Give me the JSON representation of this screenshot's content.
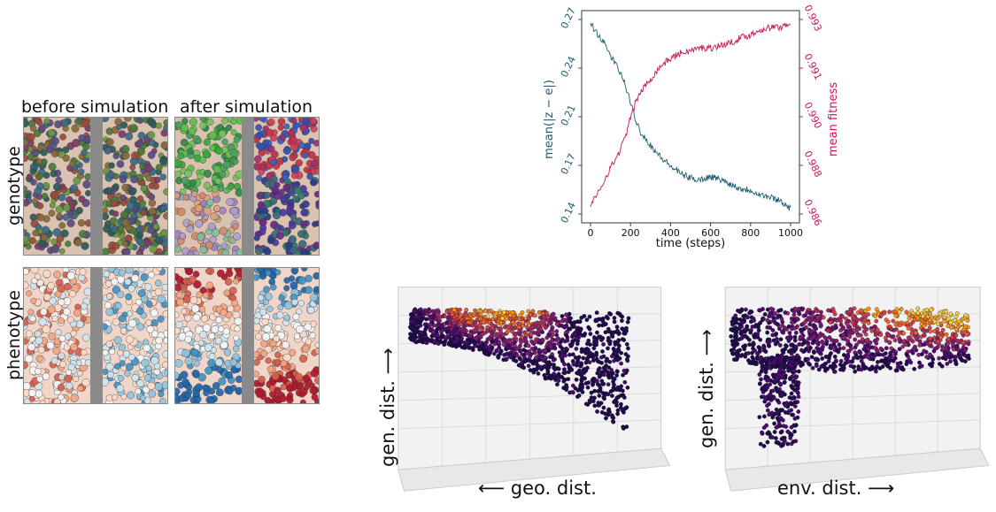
{
  "grid": {
    "col_titles": [
      "before simulation",
      "after simulation"
    ],
    "row_labels": [
      "genotype",
      "phenotype"
    ],
    "gap_color": "#8a8a8a",
    "genotype_colors": [
      "#4a7a3a",
      "#6a9a40",
      "#8a6a3a",
      "#3a6a8a",
      "#7a3a6a",
      "#2a5a5a",
      "#9a4a3a",
      "#5a4a8a"
    ],
    "phenotype_colors": [
      "#b2182b",
      "#d6604d",
      "#f4a582",
      "#fddbc7",
      "#f7f7f7",
      "#d1e5f0",
      "#92c5de",
      "#4393c3",
      "#2166ac"
    ]
  },
  "chart_data": [
    {
      "type": "line",
      "xlabel": "time (steps)",
      "xlim": [
        0,
        1000
      ],
      "xticks": [
        0,
        200,
        400,
        600,
        800,
        1000
      ],
      "series": [
        {
          "name": "mean(|z − e|)",
          "axis": "left",
          "color": "#1b5e6e",
          "yticks": [
            "0.14",
            "0.17",
            "0.21",
            "0.24",
            "0.27"
          ],
          "ylim": [
            0.14,
            0.27
          ],
          "x": [
            0,
            25,
            50,
            75,
            100,
            125,
            150,
            175,
            200,
            225,
            250,
            300,
            350,
            400,
            450,
            500,
            550,
            600,
            650,
            700,
            750,
            800,
            850,
            900,
            950,
            1000
          ],
          "y": [
            0.268,
            0.262,
            0.258,
            0.252,
            0.246,
            0.24,
            0.234,
            0.226,
            0.214,
            0.203,
            0.195,
            0.186,
            0.178,
            0.172,
            0.167,
            0.164,
            0.163,
            0.165,
            0.163,
            0.16,
            0.157,
            0.156,
            0.153,
            0.151,
            0.149,
            0.143
          ]
        },
        {
          "name": "mean fitness",
          "axis": "right",
          "color": "#c2185b",
          "yticks": [
            "0.986",
            "0.988",
            "0.990",
            "0.991",
            "0.993"
          ],
          "ylim": [
            0.986,
            0.9935
          ],
          "x": [
            0,
            25,
            50,
            75,
            100,
            125,
            150,
            175,
            200,
            225,
            250,
            300,
            350,
            400,
            450,
            500,
            550,
            600,
            650,
            700,
            750,
            800,
            850,
            900,
            950,
            1000
          ],
          "y": [
            0.9864,
            0.9866,
            0.987,
            0.9874,
            0.9878,
            0.9881,
            0.9885,
            0.989,
            0.9897,
            0.9903,
            0.9907,
            0.9912,
            0.9917,
            0.992,
            0.9922,
            0.9923,
            0.9924,
            0.9924,
            0.9925,
            0.9926,
            0.9928,
            0.9929,
            0.9931,
            0.9932,
            0.9932,
            0.9934
          ]
        }
      ]
    },
    {
      "type": "scatter",
      "zlabel": "gen. dist. ⟶",
      "xlabel": "⟵ geo. dist.",
      "colormap": [
        "#1f0c48",
        "#4b0c6b",
        "#781c6d",
        "#a52c60",
        "#cf4446",
        "#ed6925",
        "#fb9b06",
        "#f7d13d"
      ],
      "shape": "funnel-left"
    },
    {
      "type": "scatter",
      "zlabel": "gen. dist. ⟶",
      "xlabel": "env. dist. ⟶",
      "colormap": [
        "#1f0c48",
        "#4b0c6b",
        "#781c6d",
        "#a52c60",
        "#cf4446",
        "#ed6925",
        "#fb9b06",
        "#f7d13d"
      ],
      "shape": "funnel-down"
    }
  ]
}
